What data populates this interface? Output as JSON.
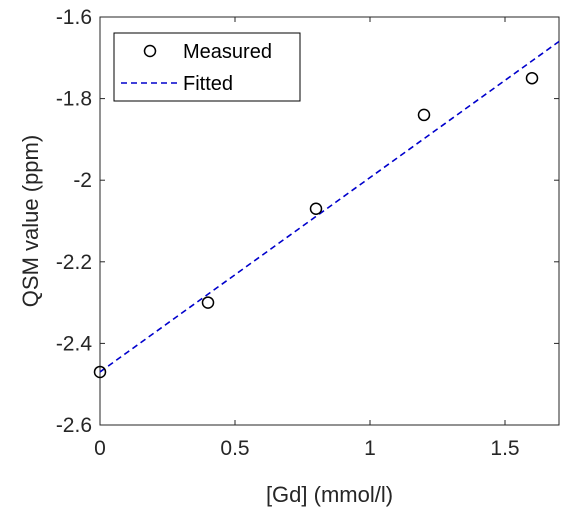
{
  "chart_data": {
    "type": "scatter",
    "xlabel": "[Gd] (mmol/l)",
    "ylabel": "QSM value (ppm)",
    "xlim": [
      0,
      1.7
    ],
    "ylim": [
      -2.6,
      -1.6
    ],
    "x_ticks": [
      0,
      0.5,
      1,
      1.5
    ],
    "x_tick_labels": [
      "0",
      "0.5",
      "1",
      "1.5"
    ],
    "y_ticks": [
      -2.6,
      -2.4,
      -2.2,
      -2.0,
      -1.8,
      -1.6
    ],
    "y_tick_labels": [
      "-2.6",
      "-2.4",
      "-2.2",
      "-2",
      "-1.8",
      "-1.6"
    ],
    "grid": false,
    "legend_position": "top-left",
    "series": [
      {
        "name": "Measured",
        "kind": "markers",
        "marker": "open-circle",
        "color": "#000000",
        "x": [
          0,
          0.4,
          0.8,
          1.2,
          1.6
        ],
        "y": [
          -2.47,
          -2.3,
          -2.07,
          -1.84,
          -1.75
        ]
      },
      {
        "name": "Fitted",
        "kind": "dashed-line",
        "color": "#0000cc",
        "x": [
          0,
          1.7
        ],
        "y": [
          -2.47,
          -1.66
        ]
      }
    ]
  }
}
